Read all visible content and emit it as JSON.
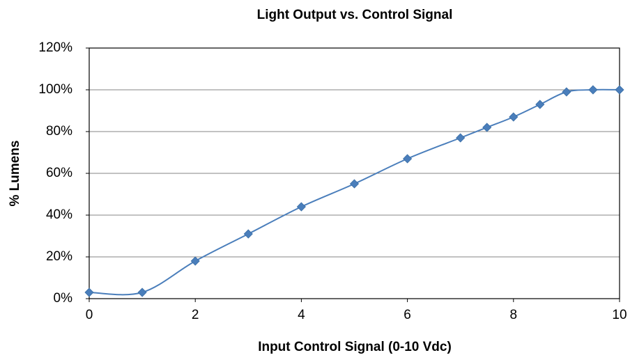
{
  "chart_data": {
    "type": "scatter_smooth",
    "title": "Light Output vs. Control Signal",
    "x_label": "Input Control Signal (0-10 Vdc)",
    "y_label": "% Lumens",
    "x": [
      0,
      1,
      2,
      3,
      4,
      5,
      6,
      7,
      7.5,
      8,
      8.5,
      9,
      9.5,
      10
    ],
    "series": [
      {
        "name": "Light Output",
        "color": "#4a7ebb",
        "values": [
          3,
          3,
          18,
          31,
          44,
          55,
          67,
          77,
          82,
          87,
          93,
          99,
          100,
          100
        ]
      }
    ],
    "xlim": [
      0,
      10
    ],
    "xticks": [
      0,
      2,
      4,
      6,
      8,
      10
    ],
    "ylim": [
      0,
      120
    ],
    "yticks": [
      {
        "value": 0,
        "label": "0%"
      },
      {
        "value": 20,
        "label": "20%"
      },
      {
        "value": 40,
        "label": "40%"
      },
      {
        "value": 60,
        "label": "60%"
      },
      {
        "value": 80,
        "label": "80%"
      },
      {
        "value": 100,
        "label": "100%"
      },
      {
        "value": 120,
        "label": "120%"
      }
    ],
    "grid": true
  }
}
